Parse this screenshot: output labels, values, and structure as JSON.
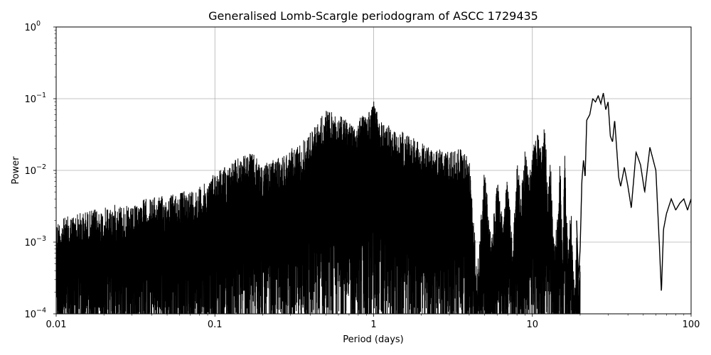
{
  "chart_data": {
    "type": "line",
    "title": "Generalised Lomb-Scargle periodogram of ASCC 1729435",
    "xlabel": "Period (days)",
    "ylabel": "Power",
    "xscale": "log",
    "yscale": "log",
    "xlim": [
      0.01,
      100
    ],
    "ylim": [
      0.0001,
      1
    ],
    "grid": true,
    "line_color": "#000000",
    "grid_color": "#b0b0b0",
    "x_ticks": [
      {
        "value": 0.01,
        "label": "0.01"
      },
      {
        "value": 0.1,
        "label": "0.1"
      },
      {
        "value": 1,
        "label": "1"
      },
      {
        "value": 10,
        "label": "10"
      },
      {
        "value": 100,
        "label": "100"
      }
    ],
    "y_ticks": [
      {
        "value": 0.0001,
        "base": "10",
        "exp": "−4"
      },
      {
        "value": 0.001,
        "base": "10",
        "exp": "−3"
      },
      {
        "value": 0.01,
        "base": "10",
        "exp": "−2"
      },
      {
        "value": 0.1,
        "base": "10",
        "exp": "−1"
      },
      {
        "value": 1,
        "base": "10",
        "exp": "0"
      }
    ],
    "series": [
      {
        "x": [
          0.01,
          0.013,
          0.016,
          0.02,
          0.025,
          0.03,
          0.035,
          0.04,
          0.05,
          0.06,
          0.07,
          0.08,
          0.09,
          0.1,
          0.12,
          0.14,
          0.17,
          0.2,
          0.25,
          0.3,
          0.35,
          0.4,
          0.45,
          0.5,
          0.6,
          0.7,
          0.8,
          0.9,
          1.0,
          1.1,
          1.3,
          1.5,
          1.8,
          2.0,
          2.3,
          2.6,
          3.0,
          3.5,
          4.0,
          4.5,
          5.0,
          5.5,
          6.0,
          6.5,
          7.0,
          7.5,
          8.0,
          8.5,
          9.0,
          9.5,
          10.0,
          10.5,
          11.0,
          11.5,
          12.0,
          12.5,
          13.0,
          13.5,
          14.0,
          14.5,
          15.0,
          15.5,
          16.0,
          16.5,
          17.0,
          17.5,
          18.0,
          18.5,
          19.0,
          19.5,
          20.0,
          20.5,
          21.0,
          21.5,
          22.0,
          23.0,
          24.0,
          25.0,
          26.0,
          27.0,
          28.0,
          29.0,
          30.0,
          31.0,
          32.0,
          33.0,
          34.0,
          35.0,
          36.0,
          38.0,
          40.0,
          42.0,
          45.0,
          48.0,
          51.0,
          55.0,
          60.0,
          63.0,
          65.0,
          67.0,
          70.0,
          75.0,
          80.0,
          85.0,
          90.0,
          95.0,
          100.0
        ],
        "y": [
          0.002,
          0.0025,
          0.0028,
          0.003,
          0.0035,
          0.003,
          0.004,
          0.0042,
          0.0045,
          0.005,
          0.0055,
          0.006,
          0.007,
          0.01,
          0.012,
          0.015,
          0.018,
          0.012,
          0.015,
          0.02,
          0.025,
          0.035,
          0.05,
          0.07,
          0.06,
          0.05,
          0.055,
          0.06,
          0.1,
          0.05,
          0.04,
          0.035,
          0.03,
          0.025,
          0.02,
          0.02,
          0.018,
          0.02,
          0.015,
          0.0004,
          0.012,
          0.001,
          0.008,
          0.002,
          0.01,
          0.0008,
          0.015,
          0.005,
          0.02,
          0.008,
          0.018,
          0.03,
          0.035,
          0.02,
          0.066,
          0.004,
          0.015,
          0.002,
          0.0012,
          0.003,
          0.018,
          0.0006,
          0.02,
          0.002,
          0.0009,
          0.004,
          0.0005,
          0.0002,
          0.002,
          0.0003,
          0.0008,
          0.007,
          0.014,
          0.008,
          0.05,
          0.06,
          0.1,
          0.09,
          0.11,
          0.085,
          0.12,
          0.07,
          0.09,
          0.03,
          0.025,
          0.05,
          0.02,
          0.008,
          0.006,
          0.011,
          0.006,
          0.003,
          0.018,
          0.012,
          0.005,
          0.021,
          0.01,
          0.001,
          0.0002,
          0.0015,
          0.0025,
          0.004,
          0.0028,
          0.0035,
          0.004,
          0.0028,
          0.004
        ]
      }
    ]
  }
}
